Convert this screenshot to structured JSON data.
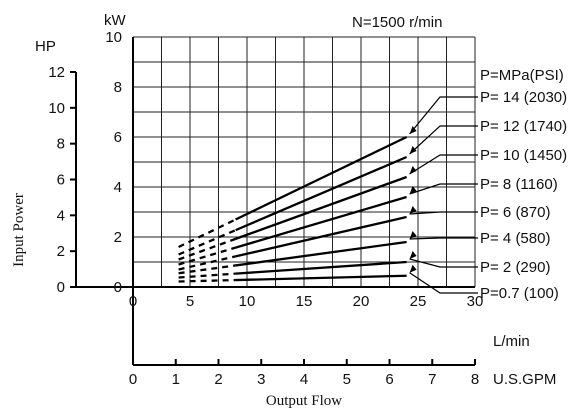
{
  "chart_data": {
    "type": "line",
    "title": "N=1500 r/min",
    "xlabel": "Output Flow",
    "ylabel": "Input Power",
    "x_axis_lmin": {
      "unit": "L/min",
      "range": [
        0,
        30
      ],
      "ticks": [
        0,
        5,
        10,
        15,
        20,
        25,
        30
      ]
    },
    "x_axis_gpm": {
      "unit": "U.S.GPM",
      "range": [
        0,
        8
      ],
      "ticks": [
        0,
        1,
        2,
        3,
        4,
        5,
        6,
        7,
        8
      ]
    },
    "y_axis_kw": {
      "unit": "kW",
      "range": [
        0,
        10
      ],
      "ticks": [
        0,
        2,
        4,
        6,
        8,
        10
      ]
    },
    "y_axis_hp": {
      "unit": "HP",
      "range": [
        0,
        12
      ],
      "ticks": [
        0,
        2,
        4,
        6,
        8,
        10,
        12
      ]
    },
    "legend_header": "P=MPa(PSI)",
    "grid": true,
    "series": [
      {
        "name": "P= 14 (2030)",
        "dashed_x": [
          4,
          9
        ],
        "solid_x": [
          9,
          24
        ],
        "y_start": 1.6,
        "y_end": 6.0
      },
      {
        "name": "P= 12 (1740)",
        "dashed_x": [
          4,
          9
        ],
        "solid_x": [
          9,
          24
        ],
        "y_start": 1.3,
        "y_end": 5.2
      },
      {
        "name": "P= 10 (1450)",
        "dashed_x": [
          4,
          9
        ],
        "solid_x": [
          9,
          24
        ],
        "y_start": 1.1,
        "y_end": 4.4
      },
      {
        "name": "P=  8 (1160)",
        "dashed_x": [
          4,
          9
        ],
        "solid_x": [
          9,
          24
        ],
        "y_start": 0.9,
        "y_end": 3.6
      },
      {
        "name": "P=  6   (870)",
        "dashed_x": [
          4,
          9
        ],
        "solid_x": [
          9,
          24
        ],
        "y_start": 0.7,
        "y_end": 2.8
      },
      {
        "name": "P=  4   (580)",
        "dashed_x": [
          4,
          9
        ],
        "solid_x": [
          9,
          24
        ],
        "y_start": 0.55,
        "y_end": 1.8
      },
      {
        "name": "P=  2   (290)",
        "dashed_x": [
          4,
          9
        ],
        "solid_x": [
          9,
          24
        ],
        "y_start": 0.38,
        "y_end": 1.0
      },
      {
        "name": "P=0.7   (100)",
        "dashed_x": [
          4,
          9
        ],
        "solid_x": [
          9,
          24
        ],
        "y_start": 0.22,
        "y_end": 0.45
      }
    ]
  }
}
